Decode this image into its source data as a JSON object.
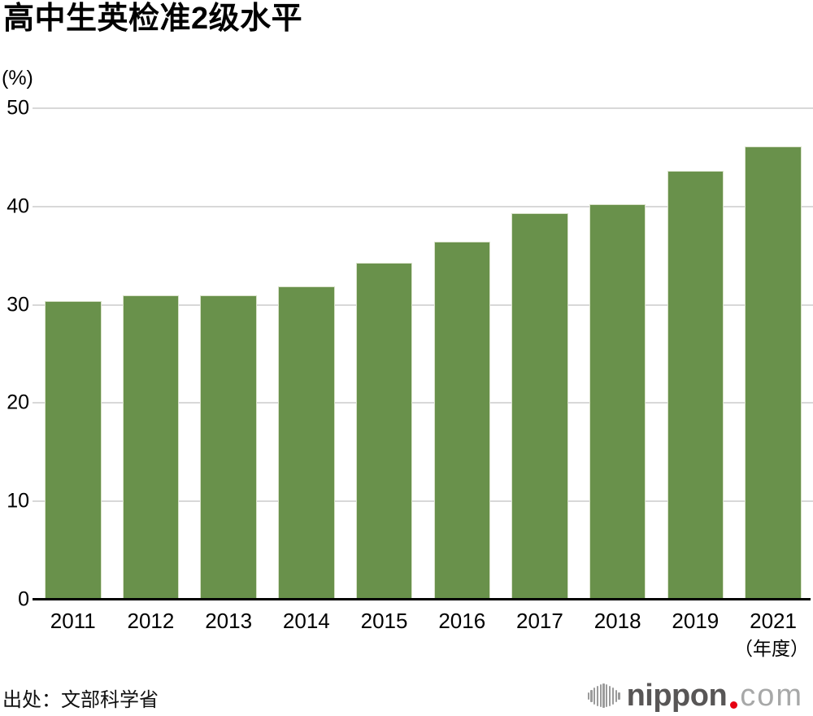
{
  "source": "出处：文部科学省",
  "x_axis_suffix": "（年度）",
  "logo": {
    "name": "nippon",
    "tld": "com"
  },
  "colors": {
    "bar": "#69914b",
    "bar_border": "#d9e2ca",
    "gridline": "#d8d8d8",
    "axis": "#000000",
    "logo_dark_gray": "#585656",
    "logo_light_gray": "#a7a8a8",
    "logo_red_dot": "#e60012"
  },
  "chart_data": {
    "type": "bar",
    "title": "高中生英检准2级水平",
    "categories": [
      "2011",
      "2012",
      "2013",
      "2014",
      "2015",
      "2016",
      "2017",
      "2018",
      "2019",
      "2021"
    ],
    "values": [
      30.4,
      31.0,
      31.0,
      31.9,
      34.3,
      36.4,
      39.3,
      40.2,
      43.6,
      46.1
    ],
    "xlabel": "（年度）",
    "ylabel": "(%)",
    "ylim": [
      0,
      50
    ],
    "yticks": [
      0,
      10,
      20,
      30,
      40,
      50
    ],
    "grid": true,
    "legend": false,
    "bar_color": "#69914b"
  }
}
